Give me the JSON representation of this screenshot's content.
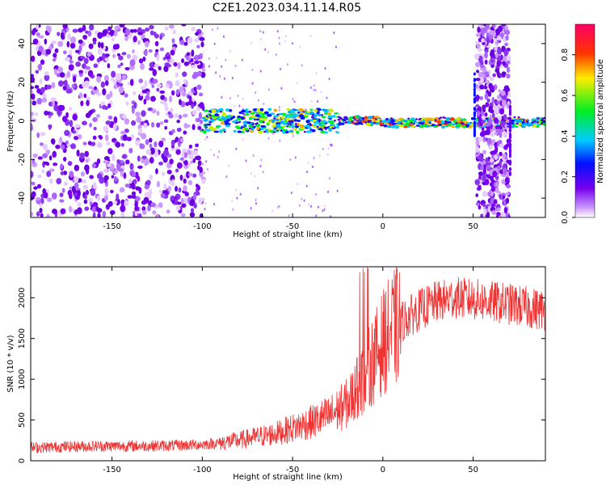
{
  "title": "C2E1.2023.034.11.14.R05",
  "chart_data": [
    {
      "type": "heatmap",
      "xlabel": "Height of straight line (km)",
      "ylabel": "Frequency (Hz)",
      "xlim": [
        -195,
        90
      ],
      "ylim": [
        -50,
        50
      ],
      "x_ticks": [
        -150,
        -100,
        -50,
        0,
        50
      ],
      "y_ticks": [
        -40,
        -20,
        0,
        20,
        40
      ],
      "colorbar": {
        "label": "Normalized spectral amplitude",
        "range": [
          0,
          0.95
        ],
        "ticks": [
          0.0,
          0.2,
          0.4,
          0.6,
          0.8
        ],
        "colormap": "rainbow (white-violet-blue-cyan-green-yellow-red-magenta)"
      },
      "features": [
        {
          "region": "diffuse noise",
          "x_range": [
            -195,
            -100
          ],
          "freq_range": [
            -50,
            50
          ]
        },
        {
          "region": "signal band",
          "x_range": [
            -100,
            90
          ],
          "freq_center": 0
        }
      ]
    },
    {
      "type": "line",
      "xlabel": "Height of straight line (km)",
      "ylabel": "SNR (10 * v/v)",
      "xlim": [
        -195,
        90
      ],
      "ylim": [
        0,
        2380
      ],
      "x_ticks": [
        -150,
        -100,
        -50,
        0,
        50
      ],
      "y_ticks": [
        0,
        500,
        1000,
        1500,
        2000
      ],
      "color": "#ee3333",
      "x": [
        -195,
        -180,
        -160,
        -140,
        -120,
        -110,
        -100,
        -90,
        -80,
        -70,
        -60,
        -50,
        -40,
        -30,
        -25,
        -20,
        -15,
        -10,
        -5,
        0,
        5,
        10,
        20,
        30,
        40,
        50,
        60,
        70,
        80,
        90
      ],
      "values": [
        160,
        170,
        180,
        180,
        185,
        190,
        200,
        220,
        250,
        290,
        330,
        400,
        470,
        550,
        620,
        700,
        850,
        1050,
        1250,
        1450,
        1600,
        1700,
        1850,
        1950,
        2000,
        1980,
        1950,
        1920,
        1880,
        1850
      ]
    }
  ]
}
